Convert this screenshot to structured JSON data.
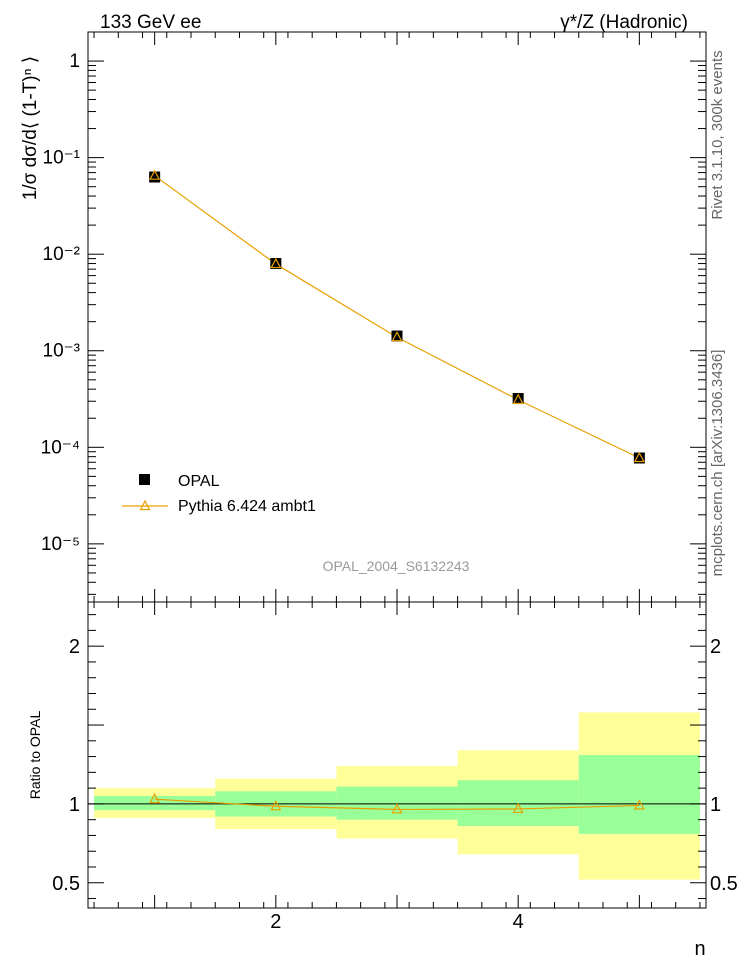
{
  "header": {
    "left": "133 GeV ee",
    "right": "γ*/Z (Hadronic)"
  },
  "side_labels": {
    "rivet": "Rivet 3.1.10,  300k events",
    "mcplots": "mcplots.cern.ch [arXiv:1306.3436]"
  },
  "analysis_id": "OPAL_2004_S6132243",
  "chart_data": [
    {
      "type": "scatter",
      "panel": "main",
      "ylabel": "1/σ dσ/d⟨ (1-T)ⁿ ⟩",
      "yscale": "log",
      "ylim": [
        2.5e-06,
        2.0
      ],
      "xlim": [
        0.45,
        5.55
      ],
      "ytick_labels": [
        "1",
        "10⁻¹",
        "10⁻²",
        "10⁻³",
        "10⁻⁴",
        "10⁻⁵"
      ],
      "legend_position": "lower-left",
      "series": [
        {
          "name": "OPAL",
          "marker": "square",
          "color": "#000000",
          "x": [
            1,
            2,
            3,
            4,
            5
          ],
          "y": [
            0.063,
            0.008,
            0.00142,
            0.00032,
            7.75e-05
          ]
        },
        {
          "name": "Pythia 6.424 ambt1",
          "marker": "triangle",
          "color": "#e8a000",
          "x": [
            1,
            2,
            3,
            4,
            5
          ],
          "y": [
            0.065,
            0.0079,
            0.00138,
            0.00031,
            7.75e-05
          ]
        }
      ]
    },
    {
      "type": "line",
      "panel": "ratio",
      "ylabel": "Ratio to OPAL",
      "xlabel": "n",
      "ylim": [
        0.34,
        2.28
      ],
      "xlim": [
        0.45,
        5.55
      ],
      "yticks": [
        0.5,
        1,
        2
      ],
      "ytick_labels": [
        "0.5",
        "1",
        "2"
      ],
      "xtick_labels": [
        "2",
        "4"
      ],
      "reference_line": 1,
      "bands": [
        {
          "x_low": 0.5,
          "x_high": 1.5,
          "green": [
            0.96,
            1.05
          ],
          "yellow": [
            0.91,
            1.1
          ]
        },
        {
          "x_low": 1.5,
          "x_high": 2.5,
          "green": [
            0.92,
            1.08
          ],
          "yellow": [
            0.84,
            1.16
          ]
        },
        {
          "x_low": 2.5,
          "x_high": 3.5,
          "green": [
            0.9,
            1.11
          ],
          "yellow": [
            0.78,
            1.24
          ]
        },
        {
          "x_low": 3.5,
          "x_high": 4.5,
          "green": [
            0.86,
            1.15
          ],
          "yellow": [
            0.68,
            1.34
          ]
        },
        {
          "x_low": 4.5,
          "x_high": 5.5,
          "green": [
            0.81,
            1.31
          ],
          "yellow": [
            0.52,
            1.58
          ]
        }
      ],
      "series": [
        {
          "name": "Pythia 6.424 ambt1",
          "marker": "triangle",
          "color": "#e8a000",
          "x": [
            1,
            2,
            3,
            4,
            5
          ],
          "y": [
            1.03,
            0.985,
            0.965,
            0.968,
            0.99
          ]
        }
      ]
    }
  ]
}
